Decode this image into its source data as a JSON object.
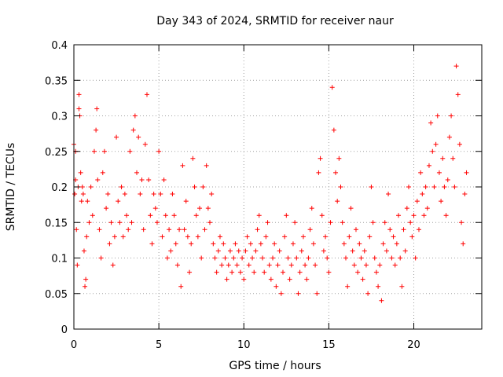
{
  "chart_data": {
    "type": "scatter",
    "title": "Day 343 of 2024, SRMTID for receiver naur",
    "xlabel": "GPS time / hours",
    "ylabel": "SRMTID / TECUs",
    "xlim": [
      0,
      24
    ],
    "ylim": [
      0,
      0.4
    ],
    "grid": true,
    "x_ticks": [
      0,
      5,
      10,
      15,
      20
    ],
    "x_tick_labels": [
      "0",
      "5",
      "10",
      "15",
      "20"
    ],
    "y_ticks": [
      0,
      0.05,
      0.1,
      0.15,
      0.2,
      0.25,
      0.3,
      0.35,
      0.4
    ],
    "y_tick_labels": [
      "0",
      "0.05",
      "0.1",
      "0.15",
      "0.2",
      "0.25",
      "0.3",
      "0.35",
      "0.4"
    ],
    "marker": "+",
    "marker_color": "#ff0000",
    "series": [
      {
        "name": "SRMTID",
        "points": [
          [
            0.0,
            0.26
          ],
          [
            0.05,
            0.19
          ],
          [
            0.1,
            0.21
          ],
          [
            0.1,
            0.25
          ],
          [
            0.15,
            0.14
          ],
          [
            0.2,
            0.09
          ],
          [
            0.25,
            0.2
          ],
          [
            0.3,
            0.33
          ],
          [
            0.3,
            0.31
          ],
          [
            0.35,
            0.3
          ],
          [
            0.4,
            0.22
          ],
          [
            0.45,
            0.18
          ],
          [
            0.5,
            0.2
          ],
          [
            0.55,
            0.19
          ],
          [
            0.6,
            0.11
          ],
          [
            0.65,
            0.06
          ],
          [
            0.7,
            0.07
          ],
          [
            0.75,
            0.13
          ],
          [
            0.8,
            0.18
          ],
          [
            0.9,
            0.15
          ],
          [
            1.0,
            0.2
          ],
          [
            1.1,
            0.16
          ],
          [
            1.2,
            0.25
          ],
          [
            1.3,
            0.28
          ],
          [
            1.35,
            0.31
          ],
          [
            1.4,
            0.21
          ],
          [
            1.5,
            0.14
          ],
          [
            1.6,
            0.1
          ],
          [
            1.7,
            0.22
          ],
          [
            1.8,
            0.25
          ],
          [
            1.9,
            0.17
          ],
          [
            2.0,
            0.19
          ],
          [
            2.1,
            0.12
          ],
          [
            2.2,
            0.15
          ],
          [
            2.3,
            0.09
          ],
          [
            2.4,
            0.13
          ],
          [
            2.5,
            0.27
          ],
          [
            2.6,
            0.18
          ],
          [
            2.7,
            0.15
          ],
          [
            2.8,
            0.2
          ],
          [
            2.9,
            0.13
          ],
          [
            3.0,
            0.19
          ],
          [
            3.1,
            0.16
          ],
          [
            3.2,
            0.14
          ],
          [
            3.3,
            0.25
          ],
          [
            3.4,
            0.15
          ],
          [
            3.5,
            0.28
          ],
          [
            3.6,
            0.3
          ],
          [
            3.7,
            0.22
          ],
          [
            3.8,
            0.27
          ],
          [
            3.9,
            0.19
          ],
          [
            4.0,
            0.21
          ],
          [
            4.1,
            0.14
          ],
          [
            4.2,
            0.26
          ],
          [
            4.3,
            0.33
          ],
          [
            4.4,
            0.21
          ],
          [
            4.5,
            0.16
          ],
          [
            4.6,
            0.12
          ],
          [
            4.7,
            0.19
          ],
          [
            4.8,
            0.17
          ],
          [
            4.9,
            0.15
          ],
          [
            5.0,
            0.25
          ],
          [
            5.1,
            0.19
          ],
          [
            5.2,
            0.13
          ],
          [
            5.3,
            0.21
          ],
          [
            5.4,
            0.16
          ],
          [
            5.5,
            0.1
          ],
          [
            5.6,
            0.14
          ],
          [
            5.7,
            0.11
          ],
          [
            5.8,
            0.19
          ],
          [
            5.9,
            0.16
          ],
          [
            6.0,
            0.12
          ],
          [
            6.1,
            0.09
          ],
          [
            6.2,
            0.14
          ],
          [
            6.3,
            0.06
          ],
          [
            6.4,
            0.23
          ],
          [
            6.5,
            0.14
          ],
          [
            6.6,
            0.18
          ],
          [
            6.7,
            0.13
          ],
          [
            6.8,
            0.08
          ],
          [
            6.9,
            0.12
          ],
          [
            7.0,
            0.24
          ],
          [
            7.1,
            0.2
          ],
          [
            7.2,
            0.16
          ],
          [
            7.3,
            0.13
          ],
          [
            7.4,
            0.17
          ],
          [
            7.5,
            0.1
          ],
          [
            7.6,
            0.2
          ],
          [
            7.7,
            0.14
          ],
          [
            7.8,
            0.23
          ],
          [
            7.9,
            0.17
          ],
          [
            8.0,
            0.15
          ],
          [
            8.1,
            0.19
          ],
          [
            8.2,
            0.12
          ],
          [
            8.3,
            0.1
          ],
          [
            8.4,
            0.08
          ],
          [
            8.5,
            0.11
          ],
          [
            8.6,
            0.13
          ],
          [
            8.7,
            0.09
          ],
          [
            8.8,
            0.12
          ],
          [
            8.9,
            0.1
          ],
          [
            9.0,
            0.07
          ],
          [
            9.1,
            0.09
          ],
          [
            9.2,
            0.11
          ],
          [
            9.3,
            0.08
          ],
          [
            9.4,
            0.1
          ],
          [
            9.5,
            0.12
          ],
          [
            9.6,
            0.09
          ],
          [
            9.7,
            0.11
          ],
          [
            9.8,
            0.08
          ],
          [
            9.9,
            0.1
          ],
          [
            10.0,
            0.07
          ],
          [
            10.1,
            0.11
          ],
          [
            10.2,
            0.13
          ],
          [
            10.3,
            0.09
          ],
          [
            10.4,
            0.12
          ],
          [
            10.5,
            0.1
          ],
          [
            10.6,
            0.08
          ],
          [
            10.7,
            0.11
          ],
          [
            10.8,
            0.14
          ],
          [
            10.9,
            0.16
          ],
          [
            11.0,
            0.12
          ],
          [
            11.1,
            0.1
          ],
          [
            11.2,
            0.08
          ],
          [
            11.3,
            0.13
          ],
          [
            11.4,
            0.15
          ],
          [
            11.5,
            0.09
          ],
          [
            11.6,
            0.07
          ],
          [
            11.7,
            0.1
          ],
          [
            11.8,
            0.12
          ],
          [
            11.9,
            0.06
          ],
          [
            12.0,
            0.09
          ],
          [
            12.1,
            0.11
          ],
          [
            12.2,
            0.05
          ],
          [
            12.3,
            0.08
          ],
          [
            12.4,
            0.13
          ],
          [
            12.5,
            0.16
          ],
          [
            12.6,
            0.1
          ],
          [
            12.7,
            0.07
          ],
          [
            12.8,
            0.09
          ],
          [
            12.9,
            0.12
          ],
          [
            13.0,
            0.15
          ],
          [
            13.1,
            0.1
          ],
          [
            13.2,
            0.05
          ],
          [
            13.3,
            0.08
          ],
          [
            13.4,
            0.11
          ],
          [
            13.5,
            0.13
          ],
          [
            13.6,
            0.09
          ],
          [
            13.7,
            0.07
          ],
          [
            13.8,
            0.1
          ],
          [
            13.9,
            0.14
          ],
          [
            14.0,
            0.17
          ],
          [
            14.1,
            0.12
          ],
          [
            14.2,
            0.09
          ],
          [
            14.3,
            0.05
          ],
          [
            14.4,
            0.22
          ],
          [
            14.5,
            0.24
          ],
          [
            14.6,
            0.16
          ],
          [
            14.7,
            0.11
          ],
          [
            14.8,
            0.13
          ],
          [
            14.9,
            0.1
          ],
          [
            15.0,
            0.08
          ],
          [
            15.1,
            0.15
          ],
          [
            15.2,
            0.34
          ],
          [
            15.3,
            0.28
          ],
          [
            15.4,
            0.22
          ],
          [
            15.5,
            0.18
          ],
          [
            15.6,
            0.24
          ],
          [
            15.7,
            0.2
          ],
          [
            15.8,
            0.15
          ],
          [
            15.9,
            0.12
          ],
          [
            16.0,
            0.1
          ],
          [
            16.1,
            0.06
          ],
          [
            16.2,
            0.13
          ],
          [
            16.3,
            0.17
          ],
          [
            16.4,
            0.11
          ],
          [
            16.5,
            0.09
          ],
          [
            16.6,
            0.14
          ],
          [
            16.7,
            0.08
          ],
          [
            16.8,
            0.12
          ],
          [
            16.9,
            0.1
          ],
          [
            17.0,
            0.07
          ],
          [
            17.1,
            0.11
          ],
          [
            17.2,
            0.09
          ],
          [
            17.3,
            0.05
          ],
          [
            17.4,
            0.13
          ],
          [
            17.5,
            0.2
          ],
          [
            17.6,
            0.15
          ],
          [
            17.7,
            0.1
          ],
          [
            17.8,
            0.08
          ],
          [
            17.9,
            0.06
          ],
          [
            18.0,
            0.09
          ],
          [
            18.1,
            0.04
          ],
          [
            18.2,
            0.12
          ],
          [
            18.3,
            0.15
          ],
          [
            18.4,
            0.11
          ],
          [
            18.5,
            0.19
          ],
          [
            18.6,
            0.14
          ],
          [
            18.7,
            0.1
          ],
          [
            18.8,
            0.13
          ],
          [
            18.9,
            0.09
          ],
          [
            19.0,
            0.12
          ],
          [
            19.1,
            0.16
          ],
          [
            19.2,
            0.1
          ],
          [
            19.3,
            0.06
          ],
          [
            19.4,
            0.14
          ],
          [
            19.5,
            0.11
          ],
          [
            19.6,
            0.17
          ],
          [
            19.7,
            0.2
          ],
          [
            19.8,
            0.15
          ],
          [
            19.9,
            0.13
          ],
          [
            20.0,
            0.16
          ],
          [
            20.1,
            0.1
          ],
          [
            20.2,
            0.18
          ],
          [
            20.3,
            0.14
          ],
          [
            20.4,
            0.22
          ],
          [
            20.5,
            0.19
          ],
          [
            20.6,
            0.16
          ],
          [
            20.7,
            0.2
          ],
          [
            20.8,
            0.17
          ],
          [
            20.9,
            0.23
          ],
          [
            21.0,
            0.29
          ],
          [
            21.1,
            0.25
          ],
          [
            21.2,
            0.2
          ],
          [
            21.3,
            0.26
          ],
          [
            21.4,
            0.3
          ],
          [
            21.5,
            0.22
          ],
          [
            21.6,
            0.18
          ],
          [
            21.7,
            0.24
          ],
          [
            21.8,
            0.2
          ],
          [
            21.9,
            0.16
          ],
          [
            22.0,
            0.21
          ],
          [
            22.1,
            0.27
          ],
          [
            22.2,
            0.3
          ],
          [
            22.3,
            0.24
          ],
          [
            22.4,
            0.2
          ],
          [
            22.5,
            0.37
          ],
          [
            22.6,
            0.33
          ],
          [
            22.7,
            0.26
          ],
          [
            22.8,
            0.15
          ],
          [
            22.9,
            0.12
          ],
          [
            23.0,
            0.19
          ],
          [
            23.1,
            0.22
          ]
        ]
      }
    ]
  }
}
